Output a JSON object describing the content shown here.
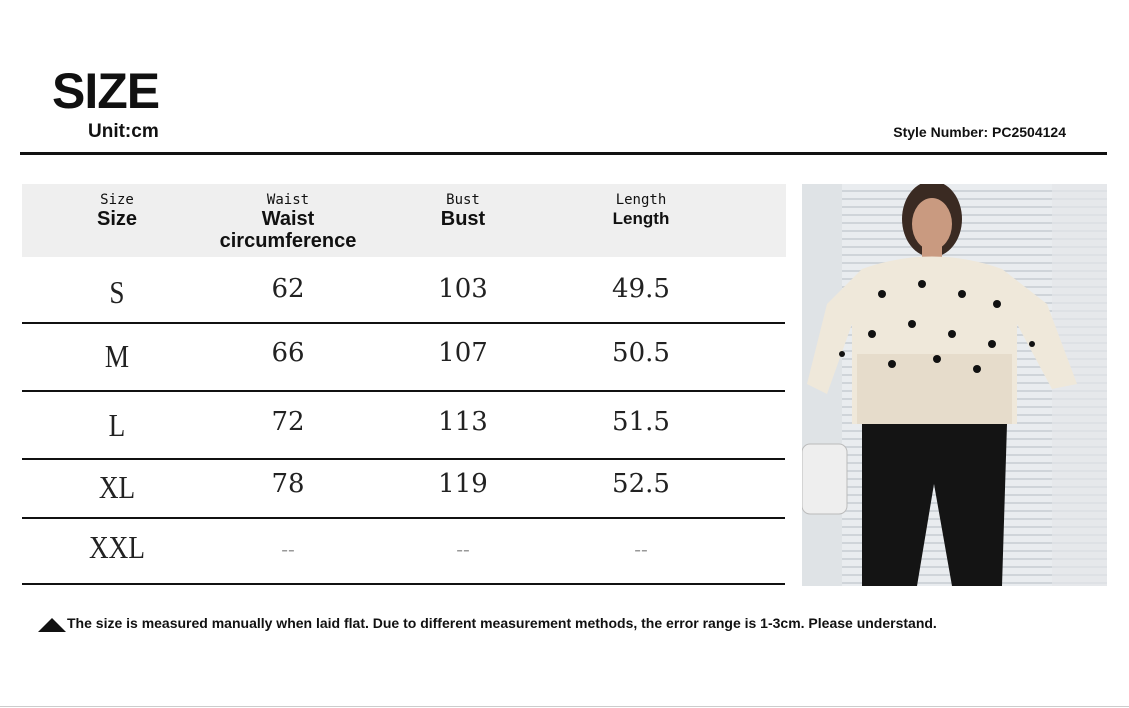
{
  "header": {
    "title": "SIZE",
    "unit": "Unit:cm",
    "style_number": "Style Number: PC2504124"
  },
  "table": {
    "columns": [
      {
        "small": "Size",
        "label": "Size"
      },
      {
        "small": "Waist",
        "label": "Waist circumference"
      },
      {
        "small": "Bust",
        "label": "Bust"
      },
      {
        "small": "Length",
        "label": "Length"
      }
    ],
    "rows": [
      [
        "S",
        "62",
        "103",
        "49.5"
      ],
      [
        "M",
        "66",
        "107",
        "50.5"
      ],
      [
        "L",
        "72",
        "113",
        "51.5"
      ],
      [
        "XL",
        "78",
        "119",
        "52.5"
      ],
      [
        "XXL",
        "--",
        "--",
        "--"
      ]
    ]
  },
  "note": "The size is measured manually when laid flat. Due to different measurement methods, the error range is 1-3cm. Please understand.",
  "icons": {
    "note": "triangle-up-icon"
  }
}
